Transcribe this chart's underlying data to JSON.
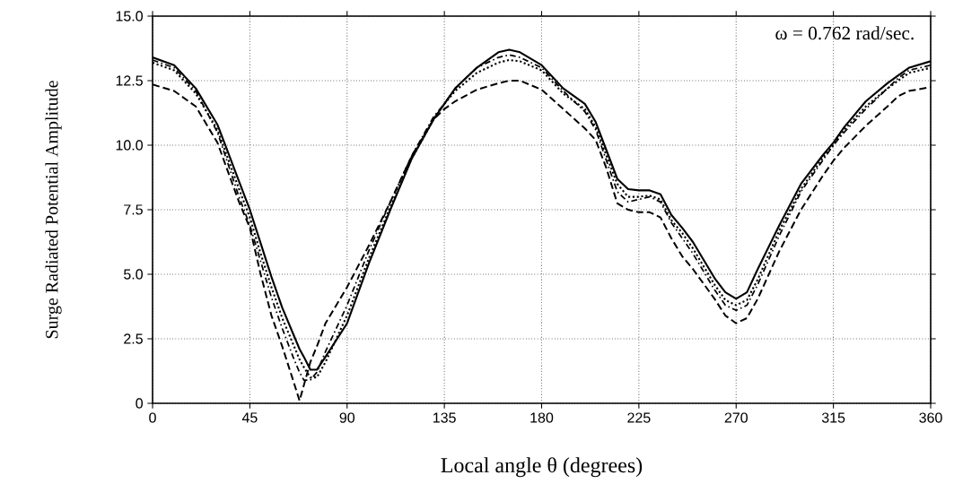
{
  "chart_data": {
    "type": "line",
    "xlabel": "Local angle θ (degrees)",
    "ylabel": "Surge Radiated Potential Amplitude",
    "annotations": [
      "ω = 0.762 rad/sec."
    ],
    "x": [
      0,
      10,
      20,
      30,
      40,
      45,
      50,
      55,
      60,
      65,
      68,
      70,
      73,
      76,
      80,
      90,
      100,
      110,
      120,
      130,
      135,
      140,
      150,
      160,
      165,
      170,
      180,
      190,
      200,
      205,
      210,
      215,
      220,
      225,
      230,
      235,
      240,
      245,
      250,
      260,
      265,
      270,
      275,
      280,
      290,
      300,
      310,
      315,
      320,
      330,
      340,
      345,
      350,
      360
    ],
    "series": [
      {
        "color": "#000000",
        "line_style": "solid",
        "values": [
          13.4,
          13.1,
          12.2,
          10.8,
          8.6,
          7.5,
          6.2,
          4.9,
          3.7,
          2.7,
          2.1,
          1.8,
          1.3,
          1.3,
          1.8,
          3.1,
          5.4,
          7.5,
          9.5,
          11.0,
          11.6,
          12.2,
          13.0,
          13.6,
          13.7,
          13.6,
          13.1,
          12.2,
          11.6,
          10.9,
          9.8,
          8.7,
          8.3,
          8.25,
          8.25,
          8.1,
          7.3,
          6.8,
          6.25,
          4.85,
          4.3,
          4.05,
          4.3,
          5.2,
          6.9,
          8.5,
          9.6,
          10.1,
          10.7,
          11.7,
          12.4,
          12.7,
          13.0,
          13.25
        ]
      },
      {
        "color": "#000000",
        "line_style": "dotted",
        "values": [
          13.2,
          12.9,
          12.0,
          10.6,
          8.3,
          7.2,
          5.8,
          4.5,
          3.3,
          2.3,
          1.7,
          1.4,
          1.0,
          1.0,
          1.6,
          3.4,
          5.6,
          7.6,
          9.5,
          11.0,
          11.6,
          12.1,
          12.8,
          13.2,
          13.3,
          13.25,
          12.9,
          12.0,
          11.4,
          10.7,
          9.6,
          8.5,
          8.0,
          8.0,
          8.05,
          7.9,
          7.1,
          6.6,
          6.0,
          4.6,
          4.0,
          3.8,
          4.0,
          4.8,
          6.7,
          8.3,
          9.5,
          10.0,
          10.6,
          11.5,
          12.2,
          12.5,
          12.8,
          13.0
        ]
      },
      {
        "color": "#000000",
        "line_style": "dashdot",
        "values": [
          13.3,
          13.0,
          12.1,
          10.5,
          8.0,
          6.9,
          5.5,
          4.1,
          2.9,
          1.8,
          1.2,
          0.9,
          0.9,
          1.2,
          2.0,
          3.8,
          5.9,
          7.8,
          9.6,
          11.1,
          11.6,
          12.2,
          13.0,
          13.4,
          13.5,
          13.4,
          13.0,
          12.1,
          11.3,
          10.6,
          9.4,
          8.2,
          7.8,
          7.9,
          8.0,
          7.8,
          7.0,
          6.4,
          5.8,
          4.4,
          3.8,
          3.6,
          3.8,
          4.6,
          6.5,
          8.2,
          9.4,
          10.0,
          10.5,
          11.4,
          12.2,
          12.6,
          12.9,
          13.1
        ]
      },
      {
        "color": "#000000",
        "line_style": "dashed",
        "values": [
          12.35,
          12.1,
          11.5,
          10.1,
          7.8,
          6.8,
          5.0,
          3.4,
          2.2,
          0.9,
          0.1,
          0.7,
          1.6,
          2.2,
          3.1,
          4.5,
          6.1,
          7.8,
          9.6,
          11.0,
          11.4,
          11.7,
          12.15,
          12.4,
          12.5,
          12.5,
          12.15,
          11.4,
          10.65,
          10.2,
          9.1,
          7.75,
          7.5,
          7.4,
          7.4,
          7.2,
          6.4,
          5.7,
          5.2,
          4.05,
          3.4,
          3.1,
          3.3,
          4.05,
          5.9,
          7.5,
          8.8,
          9.4,
          9.9,
          10.75,
          11.5,
          11.9,
          12.1,
          12.25
        ]
      }
    ],
    "xlim": [
      0,
      360
    ],
    "xticks": [
      0,
      45,
      90,
      135,
      180,
      225,
      270,
      315,
      360
    ],
    "ylim": [
      0,
      15
    ],
    "yticks": [
      0,
      2.5,
      {
        "value": 5,
        "label": "5.0"
      },
      7.5,
      {
        "value": 10,
        "label": "10.0"
      },
      12.5,
      {
        "value": 15,
        "label": "15.0"
      }
    ],
    "grid": true,
    "marker": "none"
  }
}
